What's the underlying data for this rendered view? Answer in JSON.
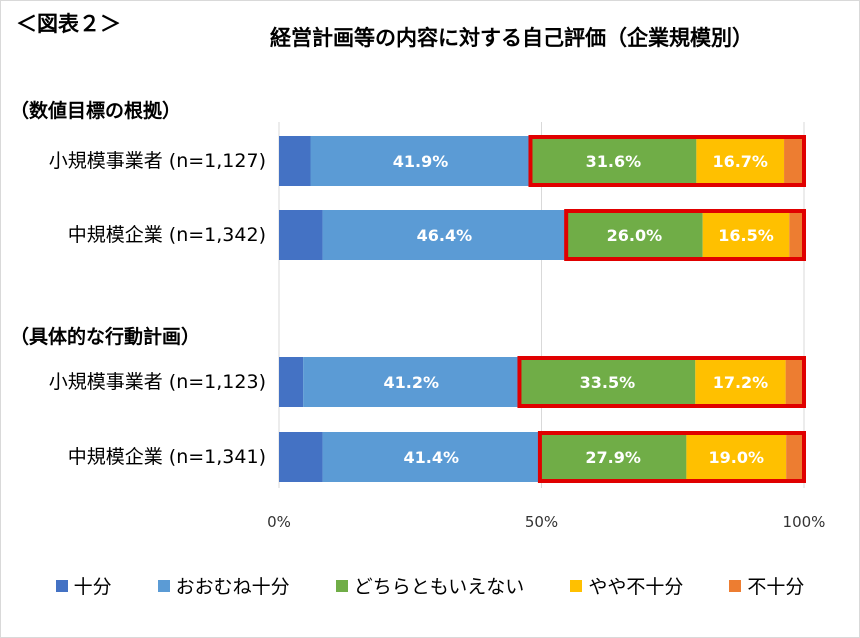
{
  "chart_data": {
    "type": "bar",
    "orientation": "horizontal",
    "stacked": true,
    "figure_label": "＜図表２＞",
    "title": "経営計画等の内容に対する自己評価（企業規模別）",
    "xlim": [
      0,
      100
    ],
    "x_ticks": [
      "0%",
      "50%",
      "100%"
    ],
    "groups": [
      {
        "name": "（数値目標の根拠）",
        "rows": [
          {
            "label": "小規模事業者 (n=1,127)",
            "values": [
              6.0,
              41.9,
              31.6,
              16.7,
              3.8
            ]
          },
          {
            "label": "中規模企業 (n=1,342)",
            "values": [
              8.3,
              46.4,
              26.0,
              16.5,
              2.8
            ]
          }
        ]
      },
      {
        "name": "（具体的な行動計画）",
        "rows": [
          {
            "label": "小規模事業者 (n=1,123)",
            "values": [
              4.6,
              41.2,
              33.5,
              17.2,
              3.5
            ]
          },
          {
            "label": "中規模企業 (n=1,341)",
            "values": [
              8.3,
              41.4,
              27.9,
              19.0,
              3.4
            ]
          }
        ]
      }
    ],
    "series": [
      {
        "name": "十分",
        "color": "#4472c4",
        "show_label": false
      },
      {
        "name": "おおむね十分",
        "color": "#5b9bd5",
        "show_label": true
      },
      {
        "name": "どちらともいえない",
        "color": "#70ad47",
        "show_label": true
      },
      {
        "name": "やや不十分",
        "color": "#ffc000",
        "show_label": true
      },
      {
        "name": "不十分",
        "color": "#ed7d31",
        "show_label": false
      }
    ],
    "highlight": {
      "from_series": 2,
      "color": "#e00000"
    },
    "grid_color": "#d9d9d9",
    "legend_position": "bottom"
  }
}
